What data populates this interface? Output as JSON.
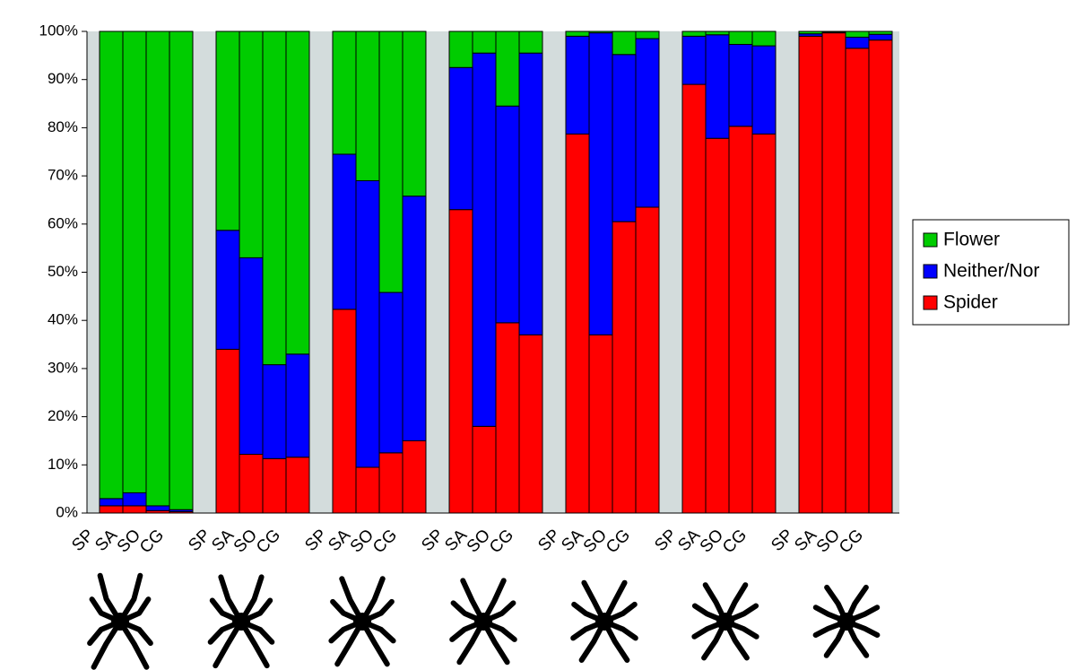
{
  "chart_data": {
    "type": "stacked_bar",
    "categories": [
      "SP",
      "SA",
      "SO",
      "CG",
      null,
      "SP",
      "SA",
      "SO",
      "CG",
      null,
      "SP",
      "SA",
      "SO",
      "CG",
      null,
      "SP",
      "SA",
      "SO",
      "CG",
      null,
      "SP",
      "SA",
      "SO",
      "CG",
      null,
      "SP",
      "SA",
      "SO",
      "CG",
      null,
      "SP",
      "SA",
      "SO",
      "CG"
    ],
    "series": [
      {
        "name": "Spider",
        "color": "#ff0000",
        "values": [
          1.5,
          1.5,
          0.5,
          0.3,
          null,
          34,
          12.2,
          11.3,
          11.6,
          null,
          42.3,
          9.5,
          12.5,
          15,
          null,
          63,
          18,
          39.5,
          37,
          null,
          78.7,
          37,
          60.5,
          63.5,
          null,
          89,
          77.8,
          80.3,
          78.7,
          null,
          99,
          99.7,
          96.5,
          98.2
        ]
      },
      {
        "name": "Neither/Nor",
        "color": "#0000ff",
        "values": [
          1.5,
          2.7,
          1,
          0.4,
          null,
          24.7,
          40.8,
          19.5,
          21.4,
          null,
          32.2,
          59.5,
          33.3,
          50.8,
          null,
          29.5,
          77.5,
          45,
          58.5,
          null,
          20.3,
          62.7,
          34.7,
          35,
          null,
          10,
          21.5,
          17,
          18.3,
          null,
          0.5,
          0.1,
          2.3,
          1.2
        ]
      },
      {
        "name": "Flower",
        "color": "#00cc00",
        "values": [
          97,
          95.8,
          98.5,
          99.3,
          null,
          41.3,
          47,
          69.2,
          67,
          null,
          25.5,
          31,
          54.2,
          34.2,
          null,
          7.5,
          4.5,
          15.5,
          4.5,
          null,
          1,
          0.3,
          4.8,
          1.5,
          null,
          1,
          0.7,
          2.7,
          3,
          null,
          0.5,
          0.2,
          1.2,
          0.6
        ]
      }
    ],
    "ylim": [
      0,
      100
    ],
    "yticks": [
      {
        "value": 0,
        "label": "0%"
      },
      {
        "value": 10,
        "label": "10%"
      },
      {
        "value": 20,
        "label": "20%"
      },
      {
        "value": 30,
        "label": "30%"
      },
      {
        "value": 40,
        "label": "40%"
      },
      {
        "value": 50,
        "label": "50%"
      },
      {
        "value": 60,
        "label": "60%"
      },
      {
        "value": 70,
        "label": "70%"
      },
      {
        "value": 80,
        "label": "80%"
      },
      {
        "value": 90,
        "label": "90%"
      },
      {
        "value": 100,
        "label": "100%"
      }
    ],
    "legend": "right"
  }
}
